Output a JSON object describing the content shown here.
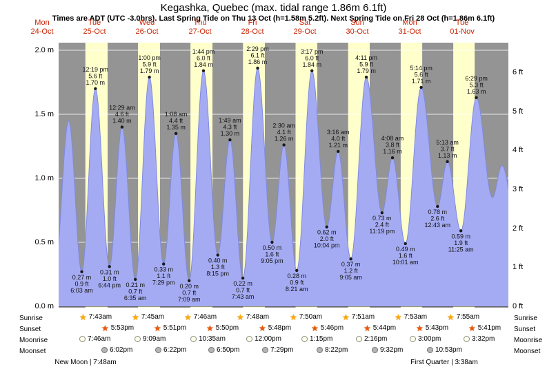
{
  "title": "Kegashka, Quebec (max. tidal range 1.86m 6.1ft)",
  "subtitle": "Times are ADT (UTC -3.0hrs). Last Spring Tide on Thu 13 Oct (h=1.58m 5.2ft). Next Spring Tide on Fri 28 Oct (h=1.86m 6.1ft)",
  "colors": {
    "day_band": "#ffffcc",
    "night_band": "#949494",
    "tide_fill": "#a4abf2",
    "tide_stroke": "#7f8ae0",
    "grid": "#ffffff",
    "day_label": "#cc2200",
    "sunrise_star": "#ffaa00",
    "sunset_star": "#ee5500"
  },
  "icons": {
    "star_glyph": "★"
  },
  "chart_data": {
    "type": "area",
    "title": "Tide height curve for Kegashka, Quebec",
    "xlabel": "time (days Mon 24-Oct to Tue 01-Nov)",
    "ylabel_left": "height (m)",
    "ylabel_right": "height (ft)",
    "x_unit": "hours from Mon 24 Oct 00:00",
    "time_range": {
      "start": 19.5,
      "end": 225.1
    },
    "ylim_m": [
      0,
      2.07
    ],
    "grid": true,
    "y_ticks_m": [
      {
        "v": 0.0,
        "label": "0.0 m"
      },
      {
        "v": 0.5,
        "label": "0.5 m"
      },
      {
        "v": 1.0,
        "label": "1.0 m"
      },
      {
        "v": 1.5,
        "label": "1.5 m"
      },
      {
        "v": 2.0,
        "label": "2.0 m"
      }
    ],
    "y_ticks_ft": [
      {
        "v": 0,
        "label": "0 ft"
      },
      {
        "v": 1,
        "label": "1 ft"
      },
      {
        "v": 2,
        "label": "2 ft"
      },
      {
        "v": 3,
        "label": "3 ft"
      },
      {
        "v": 4,
        "label": "4 ft"
      },
      {
        "v": 5,
        "label": "5 ft"
      },
      {
        "v": 6,
        "label": "6 ft"
      }
    ],
    "days": [
      {
        "name": "Mon",
        "date": "24-Oct",
        "start": 0
      },
      {
        "name": "Tue",
        "date": "25-Oct",
        "start": 24,
        "sunrise": 7.72,
        "sunset": 17.88
      },
      {
        "name": "Wed",
        "date": "26-Oct",
        "start": 48,
        "sunrise": 7.75,
        "sunset": 17.85
      },
      {
        "name": "Thu",
        "date": "27-Oct",
        "start": 72,
        "sunrise": 7.77,
        "sunset": 17.83
      },
      {
        "name": "Fri",
        "date": "28-Oct",
        "start": 96,
        "sunrise": 7.8,
        "sunset": 17.8
      },
      {
        "name": "Sat",
        "date": "29-Oct",
        "start": 120,
        "sunrise": 7.83,
        "sunset": 17.77
      },
      {
        "name": "Sun",
        "date": "30-Oct",
        "start": 144,
        "sunrise": 7.85,
        "sunset": 17.73
      },
      {
        "name": "Mon",
        "date": "31-Oct",
        "start": 168,
        "sunrise": 7.88,
        "sunset": 17.72
      },
      {
        "name": "Tue",
        "date": "01-Nov",
        "start": 192,
        "sunrise": 7.92,
        "sunset": 17.68
      }
    ],
    "extremes": [
      {
        "t": 17.8,
        "m": 0.3,
        "type": "low"
      },
      {
        "t": 24.1,
        "m": 1.45,
        "type": "high"
      },
      {
        "t": 30.05,
        "m": 0.27,
        "type": "low",
        "lines": [
          "0.27 m",
          "0.9 ft",
          "6:03 am"
        ]
      },
      {
        "t": 36.32,
        "m": 1.7,
        "type": "high",
        "lines": [
          "12:19 pm",
          "5.6 ft",
          "1.70 m"
        ]
      },
      {
        "t": 42.73,
        "m": 0.31,
        "type": "low",
        "lines": [
          "0.31 m",
          "1.0 ft",
          "6:44 pm"
        ]
      },
      {
        "t": 48.48,
        "m": 1.4,
        "type": "high",
        "lines": [
          "12:29 am",
          "4.6 ft",
          "1.40 m"
        ]
      },
      {
        "t": 54.58,
        "m": 0.21,
        "type": "low",
        "lines": [
          "0.21 m",
          "0.7 ft",
          "6:35 am"
        ]
      },
      {
        "t": 61.0,
        "m": 1.79,
        "type": "high",
        "lines": [
          "1:00 pm",
          "5.9 ft",
          "1.79 m"
        ]
      },
      {
        "t": 67.48,
        "m": 0.33,
        "type": "low",
        "lines": [
          "0.33 m",
          "1.1 ft",
          "7:29 pm"
        ]
      },
      {
        "t": 73.13,
        "m": 1.35,
        "type": "high",
        "lines": [
          "1:08 am",
          "4.4 ft",
          "1.35 m"
        ]
      },
      {
        "t": 79.15,
        "m": 0.2,
        "type": "low",
        "lines": [
          "0.20 m",
          "0.7 ft",
          "7:09 am"
        ]
      },
      {
        "t": 85.73,
        "m": 1.84,
        "type": "high",
        "lines": [
          "1:44 pm",
          "6.0 ft",
          "1.84 m"
        ]
      },
      {
        "t": 92.25,
        "m": 0.4,
        "type": "low",
        "lines": [
          "0.40 m",
          "1.3 ft",
          "8:15 pm"
        ]
      },
      {
        "t": 97.82,
        "m": 1.3,
        "type": "high",
        "lines": [
          "1:49 am",
          "4.3 ft",
          "1.30 m"
        ]
      },
      {
        "t": 103.72,
        "m": 0.22,
        "type": "low",
        "lines": [
          "0.22 m",
          "0.7 ft",
          "7:43 am"
        ]
      },
      {
        "t": 110.48,
        "m": 1.86,
        "type": "high",
        "lines": [
          "2:29 pm",
          "6.1 ft",
          "1.86 m"
        ]
      },
      {
        "t": 117.08,
        "m": 0.5,
        "type": "low",
        "lines": [
          "0.50 m",
          "1.6 ft",
          "9:05 pm"
        ]
      },
      {
        "t": 122.5,
        "m": 1.26,
        "type": "high",
        "lines": [
          "2:30 am",
          "4.1 ft",
          "1.26 m"
        ]
      },
      {
        "t": 128.35,
        "m": 0.28,
        "type": "low",
        "lines": [
          "0.28 m",
          "0.9 ft",
          "8:21 am"
        ]
      },
      {
        "t": 135.28,
        "m": 1.84,
        "type": "high",
        "lines": [
          "3:17 pm",
          "6.0 ft",
          "1.84 m"
        ]
      },
      {
        "t": 142.07,
        "m": 0.62,
        "type": "low",
        "lines": [
          "0.62 m",
          "2.0 ft",
          "10:04 pm"
        ]
      },
      {
        "t": 147.27,
        "m": 1.21,
        "type": "high",
        "lines": [
          "3:16 am",
          "4.0 ft",
          "1.21 m"
        ]
      },
      {
        "t": 153.08,
        "m": 0.37,
        "type": "low",
        "lines": [
          "0.37 m",
          "1.2 ft",
          "9:05 am"
        ]
      },
      {
        "t": 160.18,
        "m": 1.79,
        "type": "high",
        "lines": [
          "4:11 pm",
          "5.9 ft",
          "1.79 m"
        ]
      },
      {
        "t": 167.32,
        "m": 0.73,
        "type": "low",
        "lines": [
          "0.73 m",
          "2.4 ft",
          "11:19 pm"
        ]
      },
      {
        "t": 172.13,
        "m": 1.16,
        "type": "high",
        "lines": [
          "4:08 am",
          "3.8 ft",
          "1.16 m"
        ]
      },
      {
        "t": 178.02,
        "m": 0.49,
        "type": "low",
        "lines": [
          "0.49 m",
          "1.6 ft",
          "10:01 am"
        ]
      },
      {
        "t": 185.23,
        "m": 1.71,
        "type": "high",
        "lines": [
          "5:14 pm",
          "5.6 ft",
          "1.71 m"
        ]
      },
      {
        "t": 192.72,
        "m": 0.78,
        "type": "low",
        "lines": [
          "0.78 m",
          "2.6 ft",
          "12:43 am"
        ]
      },
      {
        "t": 197.22,
        "m": 1.13,
        "type": "high",
        "lines": [
          "5:13 am",
          "3.7 ft",
          "1.13 m"
        ]
      },
      {
        "t": 203.42,
        "m": 0.59,
        "type": "low",
        "lines": [
          "0.59 m",
          "1.9 ft",
          "11:25 am"
        ]
      },
      {
        "t": 210.48,
        "m": 1.63,
        "type": "high",
        "lines": [
          "6:29 pm",
          "5.3 ft",
          "1.63 m"
        ]
      },
      {
        "t": 217.8,
        "m": 0.85,
        "type": "low"
      },
      {
        "t": 222.2,
        "m": 1.1,
        "type": "high"
      },
      {
        "t": 229.5,
        "m": 0.55,
        "type": "low"
      }
    ]
  },
  "astro": {
    "row_labels": {
      "sunrise": "Sunrise",
      "sunset": "Sunset",
      "moonrise": "Moonrise",
      "moonset": "Moonset"
    },
    "sunrise": [
      {
        "day": 1,
        "h": 7.72,
        "label": "7:43am"
      },
      {
        "day": 2,
        "h": 7.75,
        "label": "7:45am"
      },
      {
        "day": 3,
        "h": 7.77,
        "label": "7:46am"
      },
      {
        "day": 4,
        "h": 7.8,
        "label": "7:48am"
      },
      {
        "day": 5,
        "h": 7.83,
        "label": "7:50am"
      },
      {
        "day": 6,
        "h": 7.85,
        "label": "7:51am"
      },
      {
        "day": 7,
        "h": 7.88,
        "label": "7:53am"
      },
      {
        "day": 8,
        "h": 7.92,
        "label": "7:55am"
      }
    ],
    "sunset": [
      {
        "day": 1,
        "h": 17.88,
        "label": "5:53pm"
      },
      {
        "day": 2,
        "h": 17.85,
        "label": "5:51pm"
      },
      {
        "day": 3,
        "h": 17.83,
        "label": "5:50pm"
      },
      {
        "day": 4,
        "h": 17.8,
        "label": "5:48pm"
      },
      {
        "day": 5,
        "h": 17.77,
        "label": "5:46pm"
      },
      {
        "day": 6,
        "h": 17.73,
        "label": "5:44pm"
      },
      {
        "day": 7,
        "h": 17.72,
        "label": "5:43pm"
      },
      {
        "day": 8,
        "h": 17.68,
        "label": "5:41pm"
      }
    ],
    "moonrise": [
      {
        "day": 1,
        "h": 7.77,
        "label": "7:46am"
      },
      {
        "day": 2,
        "h": 9.15,
        "label": "9:09am"
      },
      {
        "day": 3,
        "h": 10.58,
        "label": "10:35am"
      },
      {
        "day": 4,
        "h": 12.0,
        "label": "12:00pm"
      },
      {
        "day": 5,
        "h": 13.25,
        "label": "1:15pm"
      },
      {
        "day": 6,
        "h": 14.27,
        "label": "2:16pm"
      },
      {
        "day": 7,
        "h": 15.0,
        "label": "3:00pm"
      },
      {
        "day": 8,
        "h": 15.53,
        "label": "3:32pm"
      }
    ],
    "moonset": [
      {
        "day": 1,
        "h": 18.03,
        "label": "6:02pm"
      },
      {
        "day": 2,
        "h": 18.37,
        "label": "6:22pm"
      },
      {
        "day": 3,
        "h": 18.83,
        "label": "6:50pm"
      },
      {
        "day": 4,
        "h": 19.48,
        "label": "7:29pm"
      },
      {
        "day": 5,
        "h": 20.37,
        "label": "8:22pm"
      },
      {
        "day": 6,
        "h": 21.53,
        "label": "9:32pm"
      },
      {
        "day": 7,
        "h": 22.88,
        "label": "10:53pm"
      }
    ],
    "notes": [
      {
        "day": 1,
        "h": 7.8,
        "label": "New Moon | 7:48am"
      },
      {
        "day": 8,
        "h": 3.63,
        "label": "First Quarter | 3:38am"
      }
    ]
  }
}
